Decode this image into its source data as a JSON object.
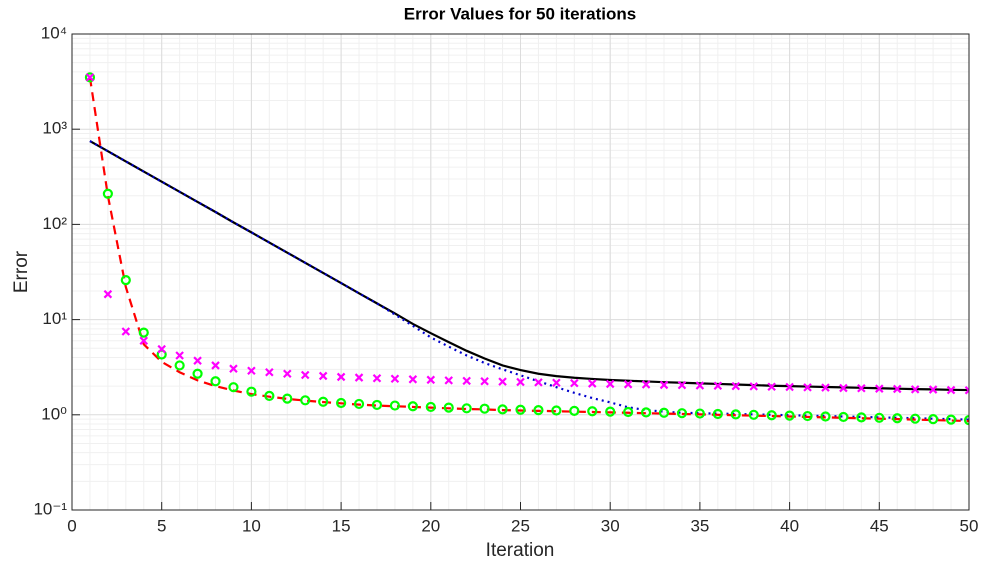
{
  "chart_data": {
    "type": "line",
    "title": "Error Values for 50 iterations",
    "x_label": "Iteration",
    "y_label": "Error",
    "x": [
      1,
      2,
      3,
      4,
      5,
      6,
      7,
      8,
      9,
      10,
      11,
      12,
      13,
      14,
      15,
      16,
      17,
      18,
      19,
      20,
      21,
      22,
      23,
      24,
      25,
      26,
      27,
      28,
      29,
      30,
      31,
      32,
      33,
      34,
      35,
      36,
      37,
      38,
      39,
      40,
      41,
      42,
      43,
      44,
      45,
      46,
      47,
      48,
      49,
      50
    ],
    "xlim": [
      0,
      50
    ],
    "xticks": [
      0,
      5,
      10,
      15,
      20,
      25,
      30,
      35,
      40,
      45,
      50
    ],
    "ylim": [
      0.1,
      10000
    ],
    "yticks": [
      {
        "value": 0.1,
        "label": "10⁻¹"
      },
      {
        "value": 1,
        "label": "10⁰"
      },
      {
        "value": 10,
        "label": "10¹"
      },
      {
        "value": 100,
        "label": "10²"
      },
      {
        "value": 1000,
        "label": "10³"
      },
      {
        "value": 10000,
        "label": "10⁴"
      }
    ],
    "log_y": true,
    "grid": true,
    "minor_grid": true,
    "series": [
      {
        "color": "#000000",
        "style": "solid",
        "values": [
          750,
          587,
          459,
          359,
          281,
          220,
          172,
          135,
          105,
          82.5,
          64.5,
          50.5,
          39.5,
          30.9,
          24.2,
          18.9,
          14.8,
          11.6,
          9.0,
          7.2,
          5.8,
          4.7,
          3.9,
          3.3,
          2.95,
          2.7,
          2.55,
          2.45,
          2.38,
          2.32,
          2.28,
          2.24,
          2.2,
          2.17,
          2.14,
          2.11,
          2.08,
          2.05,
          2.02,
          2.0,
          1.98,
          1.96,
          1.94,
          1.92,
          1.9,
          1.88,
          1.86,
          1.85,
          1.83,
          1.82
        ]
      },
      {
        "color": "#0000cd",
        "style": "dotted",
        "values": [
          750,
          587,
          459,
          359,
          281,
          220,
          172,
          135,
          105,
          82.5,
          64.5,
          50.5,
          39.5,
          30.9,
          24.2,
          18.9,
          14.8,
          11.3,
          8.6,
          6.5,
          5.2,
          4.2,
          3.5,
          3.0,
          2.6,
          2.25,
          1.95,
          1.7,
          1.5,
          1.35,
          1.2,
          1.12,
          1.08,
          1.05,
          1.04,
          1.03,
          1.02,
          1.01,
          1.0,
          0.99,
          0.98,
          0.97,
          0.96,
          0.95,
          0.94,
          0.93,
          0.92,
          0.91,
          0.9,
          0.89
        ]
      },
      {
        "color": "#ff0000",
        "style": "dashed",
        "values": [
          3500,
          200,
          22,
          5.5,
          3.6,
          2.8,
          2.3,
          2.0,
          1.8,
          1.65,
          1.55,
          1.47,
          1.41,
          1.36,
          1.32,
          1.28,
          1.25,
          1.23,
          1.21,
          1.19,
          1.17,
          1.15,
          1.14,
          1.12,
          1.11,
          1.1,
          1.09,
          1.08,
          1.07,
          1.06,
          1.05,
          1.04,
          1.03,
          1.02,
          1.01,
          1.0,
          0.99,
          0.98,
          0.97,
          0.96,
          0.95,
          0.94,
          0.93,
          0.92,
          0.91,
          0.9,
          0.89,
          0.88,
          0.87,
          0.86
        ]
      },
      {
        "color": "#00ff00",
        "style": "markers",
        "marker": "o",
        "values": [
          3500,
          210,
          26,
          7.3,
          4.3,
          3.3,
          2.7,
          2.25,
          1.95,
          1.75,
          1.58,
          1.48,
          1.42,
          1.37,
          1.33,
          1.3,
          1.27,
          1.25,
          1.23,
          1.21,
          1.19,
          1.17,
          1.16,
          1.14,
          1.13,
          1.12,
          1.11,
          1.1,
          1.09,
          1.08,
          1.07,
          1.06,
          1.05,
          1.04,
          1.03,
          1.02,
          1.01,
          1.0,
          0.99,
          0.98,
          0.97,
          0.96,
          0.95,
          0.94,
          0.93,
          0.92,
          0.91,
          0.9,
          0.89,
          0.88
        ]
      },
      {
        "color": "#ff00ff",
        "style": "markers",
        "marker": "x",
        "values": [
          3500,
          18.5,
          7.5,
          6.0,
          4.9,
          4.2,
          3.7,
          3.3,
          3.05,
          2.9,
          2.8,
          2.7,
          2.62,
          2.56,
          2.5,
          2.46,
          2.42,
          2.39,
          2.36,
          2.33,
          2.3,
          2.27,
          2.25,
          2.23,
          2.21,
          2.19,
          2.17,
          2.15,
          2.13,
          2.11,
          2.09,
          2.08,
          2.06,
          2.05,
          2.03,
          2.02,
          2.0,
          1.99,
          1.97,
          1.96,
          1.94,
          1.93,
          1.91,
          1.9,
          1.88,
          1.87,
          1.85,
          1.84,
          1.82,
          1.81
        ]
      }
    ]
  }
}
